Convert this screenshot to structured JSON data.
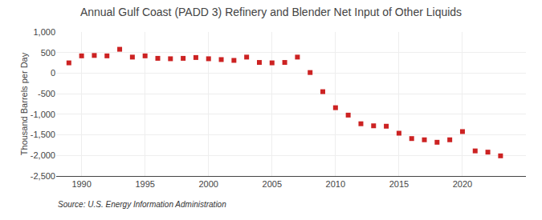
{
  "chart_data": {
    "type": "scatter",
    "title": "Annual Gulf Coast (PADD 3) Refinery and Blender Net Input of Other Liquids",
    "ylabel": "Thousand Barrels per Day",
    "annotations": [
      "Source: U.S. Energy Information Administration"
    ],
    "x": [
      1989,
      1990,
      1991,
      1992,
      1993,
      1994,
      1995,
      1996,
      1997,
      1998,
      1999,
      2000,
      2001,
      2002,
      2003,
      2004,
      2005,
      2006,
      2007,
      2008,
      2009,
      2010,
      2011,
      2012,
      2013,
      2014,
      2015,
      2016,
      2017,
      2018,
      2019,
      2020,
      2021,
      2022,
      2023
    ],
    "values": [
      250,
      420,
      430,
      420,
      580,
      390,
      420,
      360,
      350,
      360,
      380,
      350,
      330,
      310,
      390,
      260,
      250,
      260,
      390,
      15,
      -450,
      -840,
      -1020,
      -1230,
      -1280,
      -1290,
      -1460,
      -1590,
      -1620,
      -1680,
      -1620,
      -1420,
      -1890,
      -1920,
      -2010
    ],
    "color": "#cc2222",
    "marker": "square",
    "grid": true,
    "xlim": [
      1988,
      2025
    ],
    "xticks": [
      1990,
      1995,
      2000,
      2005,
      2010,
      2015,
      2020
    ],
    "ylim": [
      -2500,
      1000
    ],
    "yticks": [
      {
        "value": -2500,
        "label": "-2,500"
      },
      {
        "value": -2000,
        "label": "-2,000"
      },
      {
        "value": -1500,
        "label": "-1,500"
      },
      {
        "value": -1000,
        "label": "-1,000"
      },
      -500,
      0,
      500,
      {
        "value": 1000,
        "label": "1,000"
      }
    ]
  }
}
